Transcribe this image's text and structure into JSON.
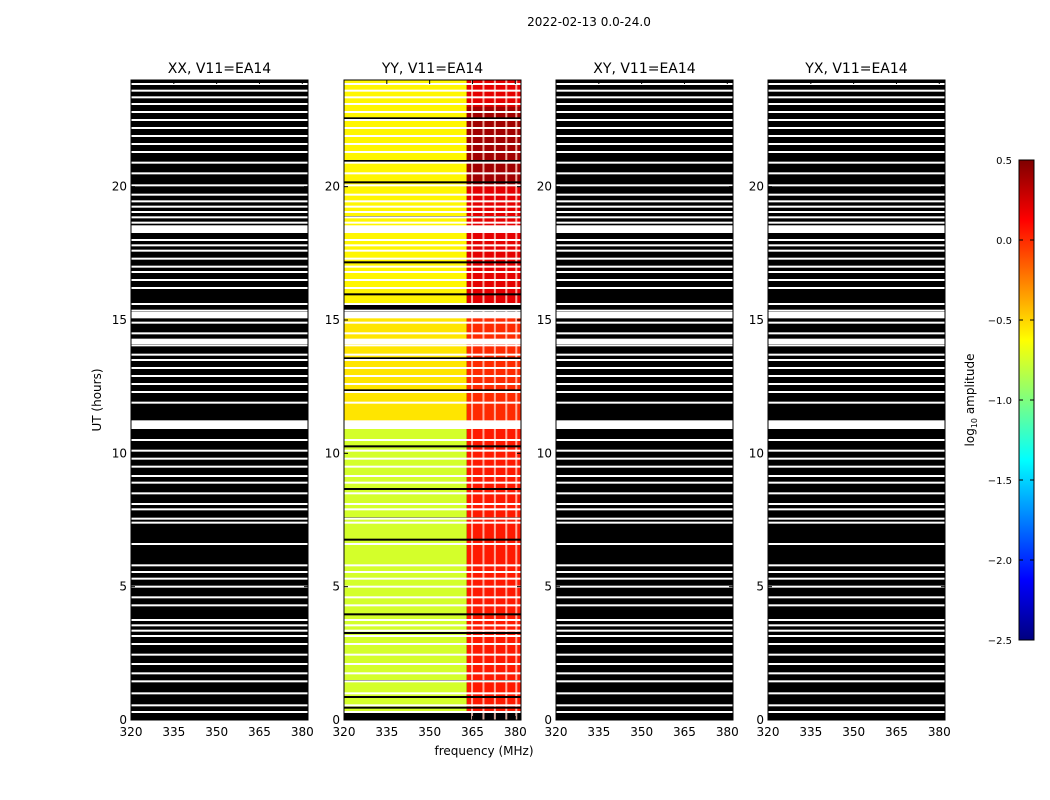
{
  "figure": {
    "suptitle": "2022-02-13 0.0-24.0",
    "xlabel": "frequency (MHz)",
    "ylabel": "UT (hours)"
  },
  "chart_data": [
    {
      "type": "heatmap",
      "title": "XX, V11=EA14",
      "xlim": [
        320,
        382
      ],
      "ylim": [
        0,
        24
      ],
      "xticks": [
        320,
        335,
        350,
        365,
        380
      ],
      "yticks": [
        0,
        5,
        10,
        15,
        20
      ],
      "content": "masked",
      "values": []
    },
    {
      "type": "heatmap",
      "title": "YY, V11=EA14",
      "xlim": [
        320,
        382
      ],
      "ylim": [
        0,
        24
      ],
      "xticks": [
        320,
        335,
        350,
        365,
        380
      ],
      "yticks": [
        0,
        5,
        10,
        15,
        20
      ],
      "content": "amplitude",
      "values": [
        {
          "x": [
            320,
            363
          ],
          "y": [
            0.3,
            11.2
          ],
          "log_amp": -0.75
        },
        {
          "x": [
            363,
            382
          ],
          "y": [
            0.3,
            11.2
          ],
          "log_amp": 0.05
        },
        {
          "x": [
            320,
            363
          ],
          "y": [
            11.2,
            15.3
          ],
          "log_amp": -0.55
        },
        {
          "x": [
            363,
            382
          ],
          "y": [
            11.2,
            15.3
          ],
          "log_amp": 0.0
        },
        {
          "x": [
            320,
            363
          ],
          "y": [
            15.6,
            24
          ],
          "log_amp": -0.6
        },
        {
          "x": [
            363,
            382
          ],
          "y": [
            15.6,
            24
          ],
          "log_amp": 0.2
        },
        {
          "x": [
            363,
            382
          ],
          "y": [
            20.0,
            23.0
          ],
          "log_amp": 0.4
        }
      ]
    },
    {
      "type": "heatmap",
      "title": "XY, V11=EA14",
      "xlim": [
        320,
        382
      ],
      "ylim": [
        0,
        24
      ],
      "xticks": [
        320,
        335,
        350,
        365,
        380
      ],
      "yticks": [
        0,
        5,
        10,
        15,
        20
      ],
      "content": "masked",
      "values": []
    },
    {
      "type": "heatmap",
      "title": "YX, V11=EA14",
      "xlim": [
        320,
        382
      ],
      "ylim": [
        0,
        24
      ],
      "xticks": [
        320,
        335,
        350,
        365,
        380
      ],
      "yticks": [
        0,
        5,
        10,
        15,
        20
      ],
      "content": "masked",
      "values": []
    }
  ],
  "colorbar": {
    "label": "log10 amplitude",
    "range": [
      -2.5,
      0.5
    ],
    "ticks": [
      "0.5",
      "0.0",
      "−0.5",
      "−1.0",
      "−1.5",
      "−2.0",
      "−2.5"
    ],
    "colormap": [
      "#00007f",
      "#0000ff",
      "#007fff",
      "#00ffff",
      "#7fff7f",
      "#ffff00",
      "#ff7f00",
      "#ff0000",
      "#7f0000"
    ]
  },
  "white_gap_rows_ut": [
    0.3,
    0.55,
    1.0,
    1.45,
    1.75,
    2.1,
    2.45,
    2.85,
    3.15,
    3.35,
    3.55,
    3.75,
    4.3,
    4.6,
    5.0,
    5.3,
    5.55,
    5.8,
    6.6,
    7.4,
    7.55,
    7.9,
    8.1,
    8.5,
    8.9,
    9.15,
    9.5,
    9.8,
    10.1,
    10.5,
    10.95,
    11.1,
    11.2,
    11.9,
    12.3,
    12.6,
    12.9,
    13.2,
    13.5,
    13.7,
    14.05,
    14.2,
    14.5,
    14.9,
    15.1,
    15.35,
    15.6,
    16.2,
    16.5,
    16.8,
    17.0,
    17.3,
    17.6,
    17.8,
    18.0,
    18.3,
    18.5,
    18.65,
    18.85,
    19.05,
    19.25,
    19.45,
    19.7,
    20.05,
    20.5,
    20.9,
    21.3,
    21.6,
    21.9,
    22.2,
    22.5,
    22.8,
    23.1,
    23.35,
    23.6,
    23.85
  ]
}
